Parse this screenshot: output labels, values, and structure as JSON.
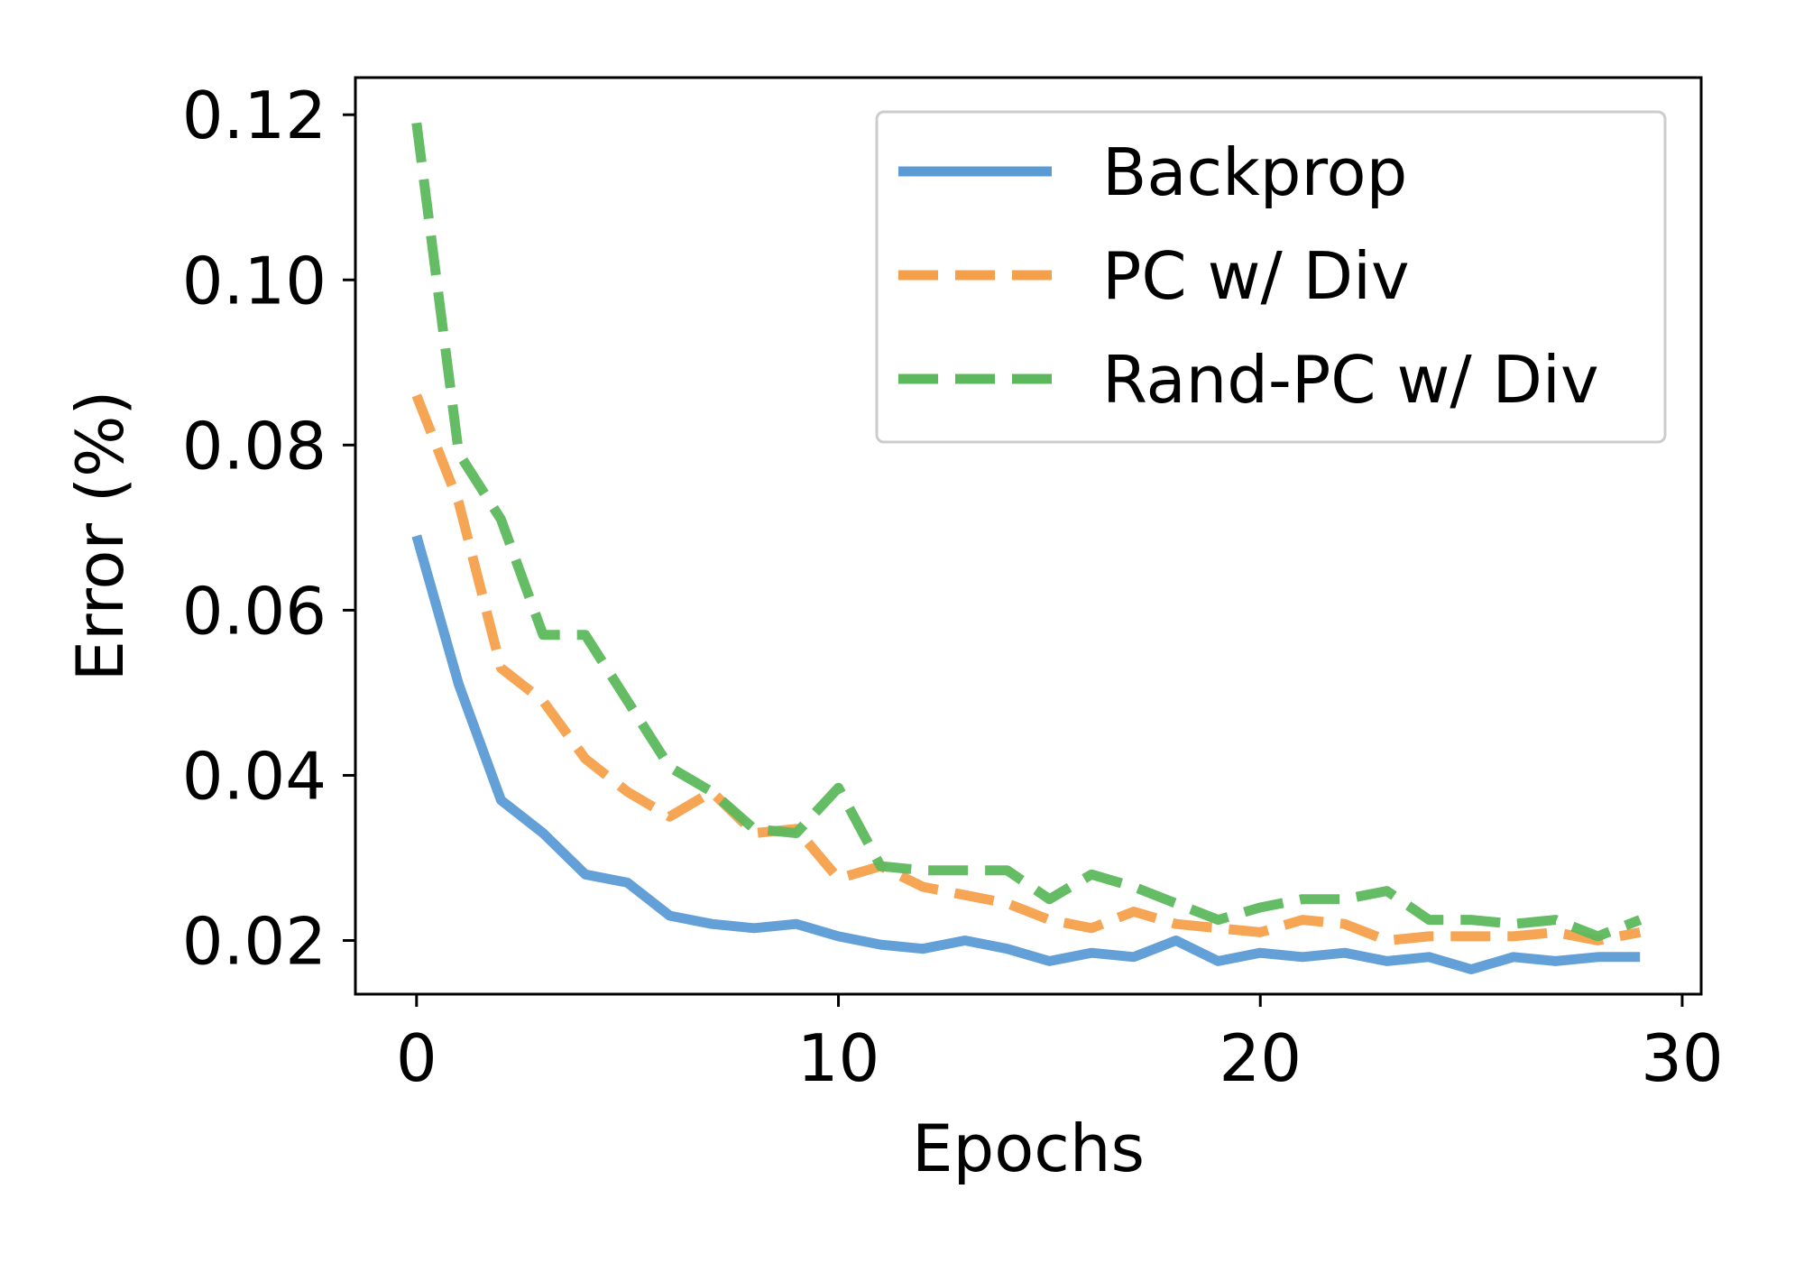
{
  "chart_data": {
    "type": "line",
    "title": "",
    "xlabel": "Epochs",
    "ylabel": "Error (%)",
    "xlim": [
      -1.45,
      30.45
    ],
    "ylim": [
      0.0135,
      0.1245
    ],
    "xticks": [
      0,
      10,
      20,
      30
    ],
    "xtick_labels": [
      "0",
      "10",
      "20",
      "30"
    ],
    "yticks": [
      0.02,
      0.04,
      0.06,
      0.08,
      0.1,
      0.12
    ],
    "ytick_labels": [
      "0.02",
      "0.04",
      "0.06",
      "0.08",
      "0.10",
      "0.12"
    ],
    "grid": false,
    "legend_position": "top-right",
    "x": [
      0,
      1,
      2,
      3,
      4,
      5,
      6,
      7,
      8,
      9,
      10,
      11,
      12,
      13,
      14,
      15,
      16,
      17,
      18,
      19,
      20,
      21,
      22,
      23,
      24,
      25,
      26,
      27,
      28,
      29
    ],
    "series": [
      {
        "name": "Backprop",
        "color": "#5b9bd5",
        "style": "solid",
        "values": [
          0.069,
          0.051,
          0.037,
          0.033,
          0.028,
          0.027,
          0.023,
          0.022,
          0.0215,
          0.022,
          0.0205,
          0.0195,
          0.019,
          0.02,
          0.019,
          0.0175,
          0.0185,
          0.018,
          0.02,
          0.0175,
          0.0185,
          0.018,
          0.0185,
          0.0175,
          0.018,
          0.0165,
          0.018,
          0.0175,
          0.018,
          0.018
        ]
      },
      {
        "name": "PC w/ Div",
        "color": "#f4a04a",
        "style": "dashed",
        "values": [
          0.086,
          0.073,
          0.053,
          0.049,
          0.042,
          0.038,
          0.035,
          0.038,
          0.033,
          0.0335,
          0.0275,
          0.029,
          0.0265,
          0.0255,
          0.0245,
          0.0225,
          0.0215,
          0.0235,
          0.022,
          0.0215,
          0.021,
          0.0225,
          0.022,
          0.02,
          0.0205,
          0.0205,
          0.0205,
          0.021,
          0.02,
          0.021
        ]
      },
      {
        "name": "Rand-PC w/ Div",
        "color": "#5cb85c",
        "style": "dashed",
        "values": [
          0.119,
          0.079,
          0.071,
          0.057,
          0.057,
          0.049,
          0.041,
          0.038,
          0.0335,
          0.033,
          0.0385,
          0.029,
          0.0285,
          0.0285,
          0.0285,
          0.025,
          0.028,
          0.0265,
          0.0245,
          0.0225,
          0.024,
          0.025,
          0.025,
          0.026,
          0.0225,
          0.0225,
          0.022,
          0.0225,
          0.0205,
          0.0225
        ]
      }
    ]
  }
}
